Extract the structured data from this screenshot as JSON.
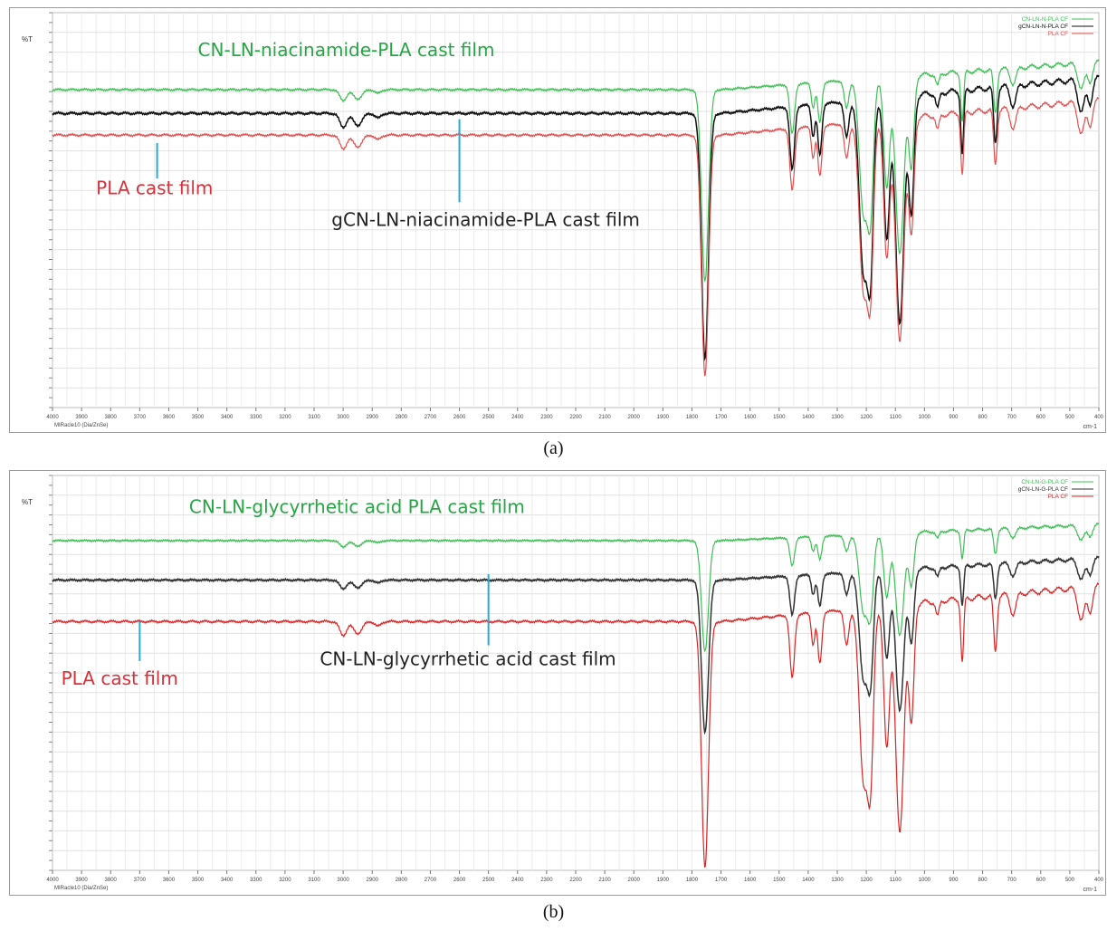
{
  "captions": {
    "a": "(a)",
    "b": "(b)"
  },
  "chart_data": [
    {
      "id": "a",
      "type": "line",
      "xlabel": "cm-1",
      "ylabel": "%T",
      "footer": "MIRacle10 (Dia/ZnSe)",
      "x_range": [
        4000,
        400
      ],
      "x_reversed": true,
      "x_ticks": [
        4000,
        3900,
        3800,
        3700,
        3600,
        3500,
        3400,
        3300,
        3200,
        3100,
        3000,
        2900,
        2800,
        2700,
        2600,
        2500,
        2400,
        2300,
        2200,
        2100,
        2000,
        1900,
        1800,
        1700,
        1600,
        1500,
        1400,
        1300,
        1200,
        1100,
        1000,
        900,
        800,
        700,
        600,
        500,
        400
      ],
      "grid": true,
      "legend_position": "top-right",
      "legend": [
        "CN-LN-N-PLA CF",
        "gCN-LN-N-PLA CF",
        "PLA CF"
      ],
      "series": [
        {
          "name": "CN-LN-N-PLA CF",
          "color": "#3fbf55",
          "offset": 0.805,
          "scale": 0.78
        },
        {
          "name": "gCN-LN-N-PLA CF",
          "color": "#111111",
          "offset": 0.745,
          "scale": 1.0
        },
        {
          "name": "PLA CF",
          "color": "#e05050",
          "offset": 0.69,
          "scale": 0.98
        }
      ],
      "annotations": [
        {
          "text": "CN-LN-niacinamide-PLA cast film",
          "color": "#27a645",
          "x": 3500,
          "y": 0.89
        },
        {
          "text": "PLA cast film",
          "color": "#d9303a",
          "x": 3850,
          "y": 0.54
        },
        {
          "text": "gCN-LN-niacinamide-PLA cast film",
          "color": "#222222",
          "x": 3040,
          "y": 0.46
        }
      ],
      "markers": [
        {
          "x": 3640,
          "y_top": 0.67,
          "y_bottom": 0.58,
          "color": "#2aa8d8"
        },
        {
          "x": 2600,
          "y_top": 0.73,
          "y_bottom": 0.52,
          "color": "#2aa8d8"
        }
      ]
    },
    {
      "id": "b",
      "type": "line",
      "xlabel": "cm-1",
      "ylabel": "%T",
      "footer": "MIRacle10 (Dia/ZnSe)",
      "x_range": [
        4000,
        400
      ],
      "x_reversed": true,
      "x_ticks": [
        4000,
        3900,
        3800,
        3700,
        3600,
        3500,
        3400,
        3300,
        3200,
        3100,
        3000,
        2900,
        2800,
        2700,
        2600,
        2500,
        2400,
        2300,
        2200,
        2100,
        2000,
        1900,
        1800,
        1700,
        1600,
        1500,
        1400,
        1300,
        1200,
        1100,
        1000,
        900,
        800,
        700,
        600,
        500,
        400
      ],
      "grid": true,
      "legend_position": "top-right",
      "legend": [
        "CN-LN-G-PLA CF",
        "gCN-LN-G-PLA CF",
        "PLA CF"
      ],
      "series": [
        {
          "name": "CN-LN-G-PLA CF",
          "color": "#3fbf55",
          "offset": 0.835,
          "scale": 0.45
        },
        {
          "name": "gCN-LN-G-PLA CF",
          "color": "#333333",
          "offset": 0.735,
          "scale": 0.62
        },
        {
          "name": "PLA CF",
          "color": "#d92525",
          "offset": 0.63,
          "scale": 1.0
        }
      ],
      "annotations": [
        {
          "text": "CN-LN-glycyrrhetic acid PLA cast film",
          "color": "#27a645",
          "x": 3530,
          "y": 0.905
        },
        {
          "text": "PLA cast film",
          "color": "#d9303a",
          "x": 3970,
          "y": 0.47
        },
        {
          "text": "CN-LN-glycyrrhetic acid cast film",
          "color": "#222222",
          "x": 3080,
          "y": 0.52
        }
      ],
      "markers": [
        {
          "x": 3700,
          "y_top": 0.63,
          "y_bottom": 0.53,
          "color": "#2aa8d8"
        },
        {
          "x": 2500,
          "y_top": 0.75,
          "y_bottom": 0.57,
          "color": "#2aa8d8"
        }
      ]
    }
  ]
}
